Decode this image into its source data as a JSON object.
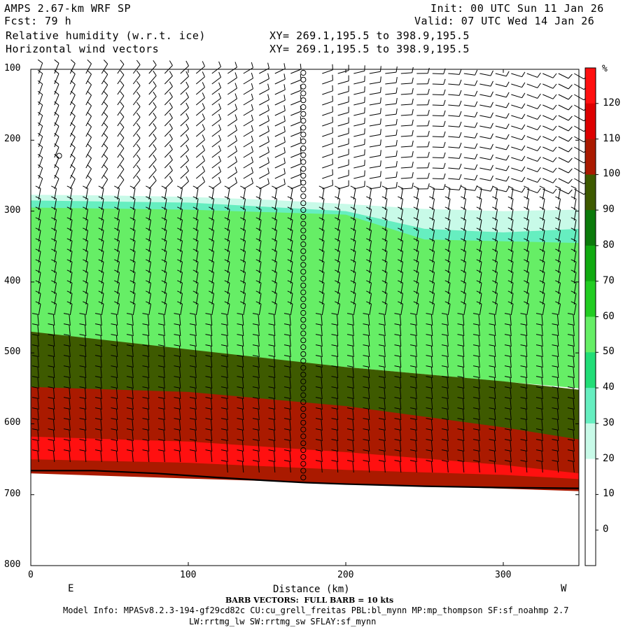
{
  "header": {
    "model_title": "AMPS 2.67-km WRF SP",
    "forecast_label": "Fcst:",
    "forecast_value": "79 h",
    "field_line1": "Relative humidity (w.r.t. ice)",
    "field_line2": "Horizontal wind vectors",
    "xy_line1": "XY= 269.1,195.5 to 398.9,195.5",
    "xy_line2": "XY= 269.1,195.5 to 398.9,195.5",
    "init_line": "Init: 00 UTC Sun 11 Jan 26",
    "valid_line": "Valid: 07 UTC Wed 14 Jan 26"
  },
  "colors": {
    "bands": [
      "#ffffff",
      "#ffffff",
      "#ffffff",
      "#ffffff",
      "#c8fae8",
      "#66eec0",
      "#22dd77",
      "#66ee66",
      "#22cc22",
      "#11aa11",
      "#0b7a0b",
      "#3e5a00",
      "#aa1a00",
      "#dd0000",
      "#ff1010"
    ],
    "terrain": "#000000",
    "barbs": "#000000"
  },
  "chart_data": {
    "type": "heatmap",
    "title": "Relative humidity (w.r.t. ice)",
    "xlabel": "Distance (km)",
    "ylabel": "",
    "xlim": [
      0,
      348
    ],
    "ylim": [
      800,
      100
    ],
    "x_ticks": [
      0,
      100,
      200,
      300
    ],
    "y_ticks": [
      100,
      200,
      300,
      400,
      500,
      600,
      700,
      800
    ],
    "x_end_labels": {
      "left": "E",
      "right": "W"
    },
    "colorbar": {
      "unit": "%",
      "levels": [
        0,
        10,
        20,
        30,
        40,
        50,
        60,
        70,
        80,
        90,
        100,
        110,
        120
      ],
      "band_colors": [
        "#ffffff",
        "#ffffff",
        "#ffffff",
        "#c8fae8",
        "#66eec0",
        "#22dd77",
        "#66ee66",
        "#22cc22",
        "#11aa11",
        "#0b7a0b",
        "#3e5a00",
        "#aa1a00",
        "#dd0000",
        "#ff1010"
      ]
    },
    "rh_layers": [
      {
        "rh": "30",
        "color": "#c8fae8",
        "top": [
          [
            0,
            277
          ],
          [
            50,
            278
          ],
          [
            100,
            280
          ],
          [
            150,
            284
          ],
          [
            200,
            290
          ],
          [
            250,
            297
          ],
          [
            300,
            300
          ],
          [
            348,
            298
          ]
        ],
        "bottom": [
          [
            0,
            290
          ],
          [
            348,
            340
          ]
        ]
      },
      {
        "rh": "50",
        "color": "#66eec0",
        "top": [
          [
            0,
            285
          ],
          [
            100,
            288
          ],
          [
            200,
            300
          ],
          [
            250,
            325
          ],
          [
            300,
            330
          ],
          [
            348,
            325
          ]
        ],
        "bottom": [
          [
            0,
            470
          ],
          [
            348,
            500
          ]
        ]
      },
      {
        "rh": "70",
        "color": "#66ee66",
        "top": [
          [
            0,
            295
          ],
          [
            100,
            298
          ],
          [
            200,
            305
          ],
          [
            250,
            340
          ],
          [
            348,
            345
          ]
        ],
        "bottom": [
          [
            0,
            470
          ],
          [
            100,
            500
          ],
          [
            200,
            520
          ],
          [
            348,
            550
          ]
        ]
      },
      {
        "rh": "100",
        "color": "#3e5a00",
        "top": [
          [
            0,
            470
          ],
          [
            100,
            495
          ],
          [
            200,
            520
          ],
          [
            300,
            540
          ],
          [
            348,
            552
          ]
        ],
        "bottom": [
          [
            0,
            560
          ],
          [
            348,
            625
          ]
        ]
      },
      {
        "rh": "110",
        "color": "#aa1a00",
        "top": [
          [
            0,
            548
          ],
          [
            100,
            555
          ],
          [
            200,
            575
          ],
          [
            300,
            605
          ],
          [
            348,
            622
          ]
        ],
        "bottom": [
          [
            0,
            670
          ],
          [
            348,
            695
          ]
        ]
      },
      {
        "rh": "120",
        "color": "#ff1010",
        "top": [
          [
            0,
            618
          ],
          [
            100,
            625
          ],
          [
            200,
            640
          ],
          [
            300,
            658
          ],
          [
            348,
            670
          ]
        ],
        "bottom": [
          [
            0,
            650
          ],
          [
            100,
            655
          ],
          [
            200,
            665
          ],
          [
            300,
            672
          ],
          [
            348,
            678
          ]
        ]
      }
    ],
    "terrain_surface": [
      [
        0,
        666
      ],
      [
        40,
        666
      ],
      [
        80,
        670
      ],
      [
        120,
        676
      ],
      [
        150,
        680
      ],
      [
        175,
        683
      ],
      [
        200,
        685
      ],
      [
        250,
        688
      ],
      [
        300,
        690
      ],
      [
        348,
        691
      ]
    ],
    "barb_columns_km": [
      5,
      15,
      25,
      35,
      45,
      55,
      65,
      75,
      85,
      95,
      105,
      115,
      125,
      135,
      145,
      155,
      165,
      185,
      195,
      205,
      215,
      225,
      235,
      245,
      255,
      265,
      275,
      285,
      295,
      305,
      315,
      325,
      335,
      345
    ],
    "calm_column_km": 173,
    "barb_footer": "BARB VECTORS:  FULL BARB = 10 kts"
  },
  "footer": {
    "model_info_line1": "Model Info: MPASv8.2.3-194-gf29cd82c CU:cu_grell_freitas PBL:bl_mynn MP:mp_thompson SF:sf_noahmp 2.7",
    "model_info_line2": "LW:rrtmg_lw SW:rrtmg_sw SFLAY:sf_mynn"
  }
}
